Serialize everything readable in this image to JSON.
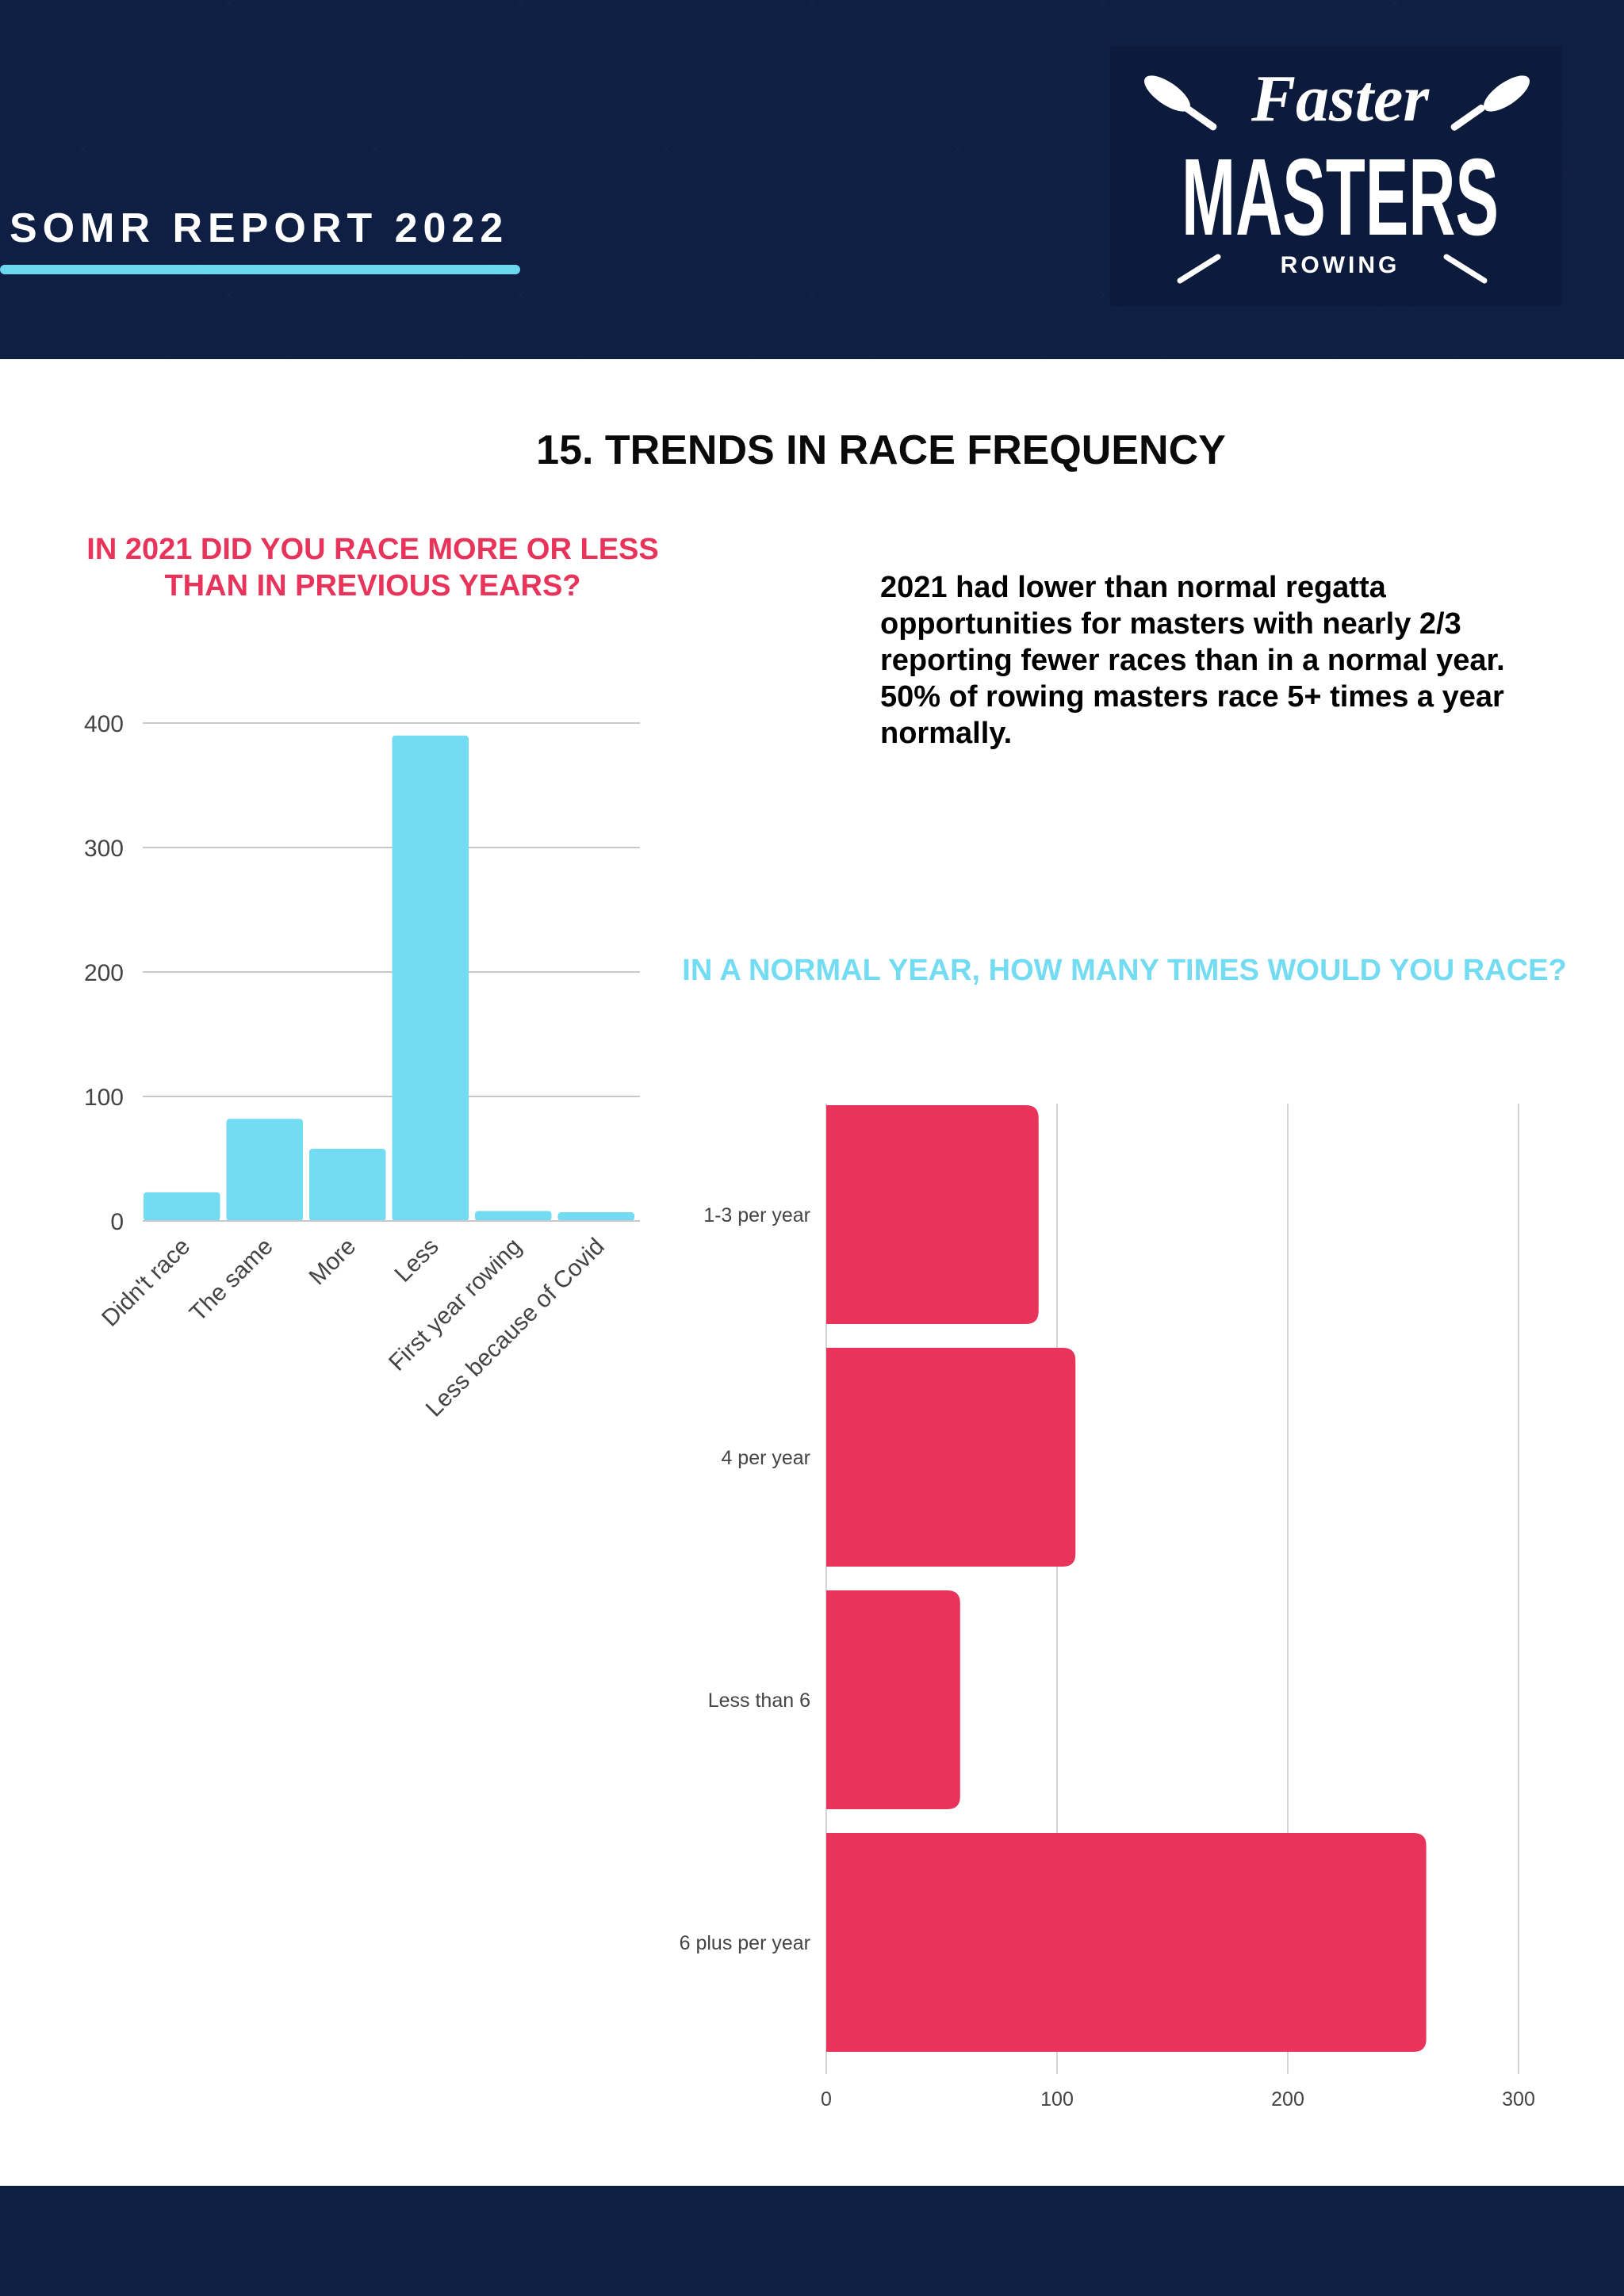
{
  "header": {
    "report_title": "SOMR REPORT 2022",
    "logo": {
      "line1": "Faster",
      "line2": "MASTERS",
      "line3": "ROWING"
    }
  },
  "page_title": "15. TRENDS IN RACE FREQUENCY",
  "summary": "2021 had lower than normal regatta opportunities for masters with nearly 2/3 reporting fewer races than in a normal year. 50% of rowing masters race 5+ times a year normally.",
  "colors": {
    "navy": "#0f1e43",
    "cyan": "#73dcf3",
    "red": "#e8345a"
  },
  "chart_data": [
    {
      "type": "bar",
      "title": "IN 2021 DID YOU RACE MORE OR LESS THAN IN PREVIOUS YEARS?",
      "categories": [
        "Didn't race",
        "The same",
        "More",
        "Less",
        "First year rowing",
        "Less because of Covid"
      ],
      "values": [
        23,
        82,
        58,
        390,
        8,
        7
      ],
      "ylim": [
        0,
        400
      ],
      "yticks": [
        0,
        100,
        200,
        300,
        400
      ],
      "xlabel": "",
      "ylabel": "",
      "grid": true,
      "color": "#73dcf3"
    },
    {
      "type": "bar",
      "orientation": "horizontal",
      "title": "IN A NORMAL YEAR, HOW MANY TIMES WOULD YOU RACE?",
      "categories": [
        "1-3 per year",
        "4 per year",
        "Less than 6",
        "6 plus per year"
      ],
      "values": [
        92,
        108,
        58,
        260
      ],
      "xlim": [
        0,
        300
      ],
      "xticks": [
        0,
        100,
        200,
        300
      ],
      "xlabel": "",
      "ylabel": "",
      "grid": true,
      "color": "#e8345a"
    }
  ]
}
